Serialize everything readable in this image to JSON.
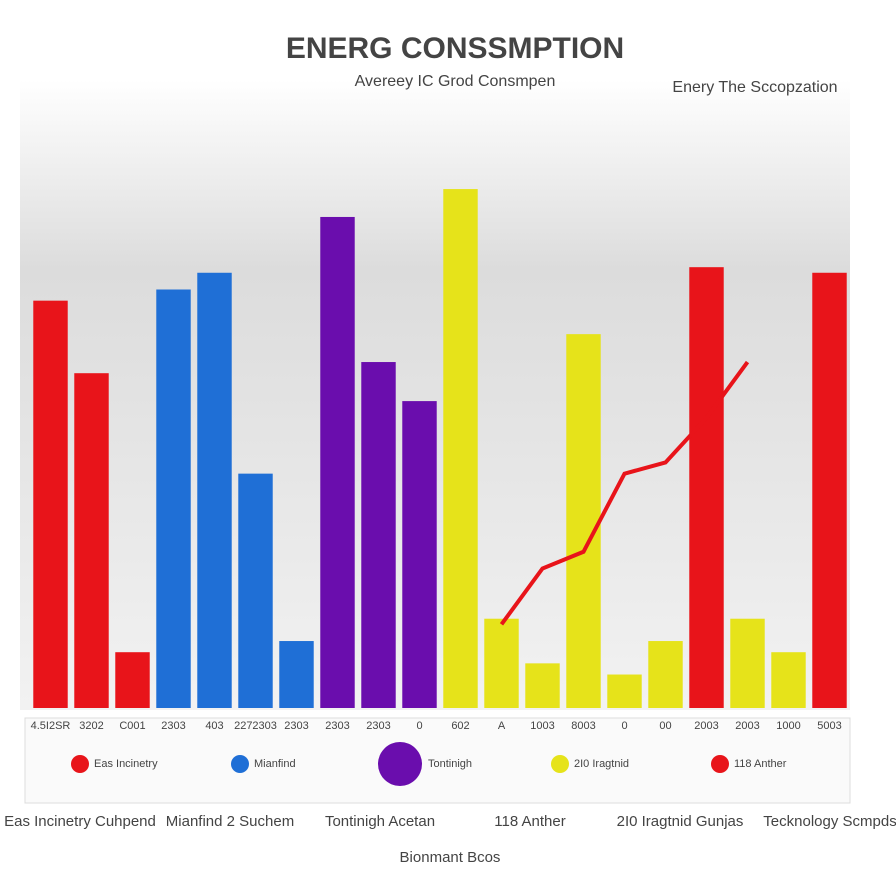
{
  "chart_data": {
    "type": "bar",
    "title": "ENERG CONSSMPTION",
    "subtitle": "Avereey IC Grod Consmpen",
    "annotation": "Enery The Sccopzation",
    "categories": [
      "4.5I2SR",
      "3202",
      "C001",
      "2303",
      "403",
      "2272303",
      "2303",
      "2303",
      "2303",
      "0",
      "602",
      "A",
      "1003",
      "8003",
      "0",
      "00",
      "2003",
      "2003",
      "1000",
      "5003"
    ],
    "ylim": [
      0,
      100
    ],
    "series": [
      {
        "name": "Eas Incinetry",
        "color": "#e8141a",
        "values": [
          73,
          60,
          10,
          null,
          null,
          null,
          null,
          null,
          null,
          null,
          null,
          null,
          null,
          null,
          null,
          null,
          79,
          null,
          null,
          78
        ]
      },
      {
        "name": "Mianfind",
        "color": "#1f6fd6",
        "values": [
          null,
          null,
          null,
          75,
          78,
          42,
          12,
          null,
          null,
          null,
          null,
          null,
          null,
          null,
          null,
          null,
          null,
          null,
          null,
          null
        ]
      },
      {
        "name": "Tontinigh",
        "color": "#6a0dad",
        "values": [
          null,
          null,
          null,
          null,
          null,
          null,
          null,
          88,
          62,
          55,
          null,
          null,
          null,
          null,
          null,
          null,
          null,
          null,
          null,
          null
        ]
      },
      {
        "name": "2I0 Iragtnid",
        "color": "#e6e31a",
        "values": [
          null,
          null,
          null,
          null,
          null,
          null,
          null,
          null,
          null,
          null,
          93,
          16,
          8,
          67,
          6,
          12,
          null,
          16,
          10,
          null
        ]
      },
      {
        "name": "118 Anther",
        "type": "line",
        "color": "#e8141a",
        "values": [
          null,
          null,
          null,
          null,
          null,
          null,
          null,
          null,
          null,
          null,
          null,
          15,
          25,
          28,
          42,
          44,
          52,
          62,
          null,
          null
        ]
      }
    ],
    "captions": [
      "Eas Incinetry Cuhpend",
      "Mianfind 2 Suchem",
      "Tontinigh Acetan",
      "118 Anther",
      "2I0 Iragtnid Gunjas",
      "Tecknology Scmpds",
      "Bionmant Bcos"
    ]
  }
}
